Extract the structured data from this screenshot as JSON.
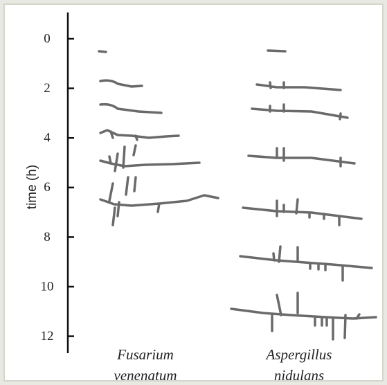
{
  "axis": {
    "label": "time (h)",
    "ticks": [
      0,
      2,
      4,
      6,
      8,
      10,
      12
    ]
  },
  "species": [
    {
      "genus": "Fusarium",
      "epithet": "venenatum"
    },
    {
      "genus": "Aspergillus",
      "epithet": "nidulans"
    }
  ]
}
